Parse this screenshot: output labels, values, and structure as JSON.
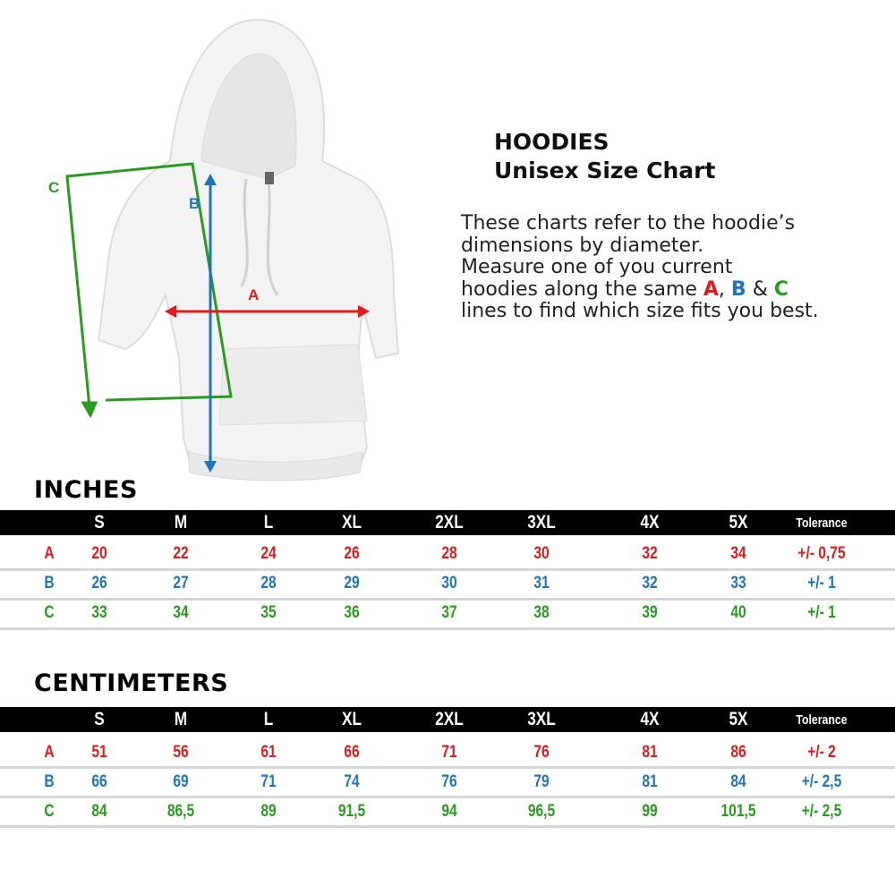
{
  "header": {
    "title": "HOODIES",
    "subtitle": "Unisex Size Chart"
  },
  "description": {
    "line1": "These charts refer to the hoodie’s",
    "line2": "dimensions by diameter.",
    "line3": "Measure one of you current",
    "line4_pre": "hoodies along the same ",
    "key_a": "A",
    "comma": ", ",
    "key_b": "B",
    "amp": " & ",
    "key_c": "C",
    "line5": "lines to find which size fits you best."
  },
  "diagram": {
    "label_a": "A",
    "label_b": "B",
    "label_c": "C"
  },
  "colors": {
    "A": "#e01b1b",
    "B": "#1f74bb",
    "C": "#2a9a20",
    "header_bg": "#000000"
  },
  "tables": [
    {
      "title": "INCHES",
      "columns": [
        "S",
        "M",
        "L",
        "XL",
        "2XL",
        "3XL",
        "4X",
        "5X",
        "Tolerance"
      ],
      "rows": [
        {
          "label": "A",
          "values": [
            "20",
            "22",
            "24",
            "26",
            "28",
            "30",
            "32",
            "34",
            "+/- 0,75"
          ]
        },
        {
          "label": "B",
          "values": [
            "26",
            "27",
            "28",
            "29",
            "30",
            "31",
            "32",
            "33",
            "+/- 1"
          ]
        },
        {
          "label": "C",
          "values": [
            "33",
            "34",
            "35",
            "36",
            "37",
            "38",
            "39",
            "40",
            "+/- 1"
          ]
        }
      ]
    },
    {
      "title": "CENTIMETERS",
      "columns": [
        "S",
        "M",
        "L",
        "XL",
        "2XL",
        "3XL",
        "4X",
        "5X",
        "Tolerance"
      ],
      "rows": [
        {
          "label": "A",
          "values": [
            "51",
            "56",
            "61",
            "66",
            "71",
            "76",
            "81",
            "86",
            "+/- 2"
          ]
        },
        {
          "label": "B",
          "values": [
            "66",
            "69",
            "71",
            "74",
            "76",
            "79",
            "81",
            "84",
            "+/- 2,5"
          ]
        },
        {
          "label": "C",
          "values": [
            "84",
            "86,5",
            "89",
            "91,5",
            "94",
            "96,5",
            "99",
            "101,5",
            "+/- 2,5"
          ]
        }
      ]
    }
  ]
}
